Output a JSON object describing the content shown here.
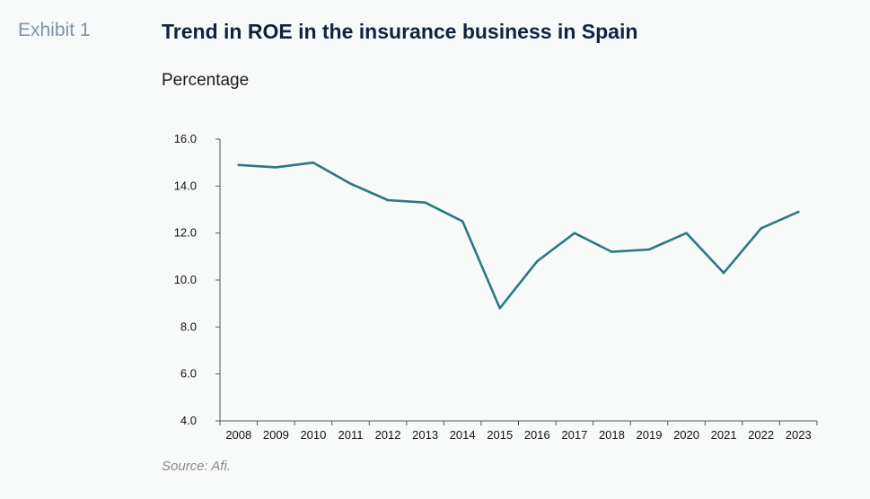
{
  "header": {
    "exhibit_label": "Exhibit 1",
    "title": "Trend in ROE in the insurance business in Spain",
    "subtitle": "Percentage"
  },
  "footer": {
    "source": "Source: Afi."
  },
  "chart_data": {
    "type": "line",
    "title": "Trend in ROE in the insurance business in Spain",
    "subtitle": "Percentage",
    "xlabel": "",
    "ylabel": "",
    "categories": [
      "2008",
      "2009",
      "2010",
      "2011",
      "2012",
      "2013",
      "2014",
      "2015",
      "2016",
      "2017",
      "2018",
      "2019",
      "2020",
      "2021",
      "2022",
      "2023"
    ],
    "series": [
      {
        "values": [
          14.9,
          14.8,
          15.0,
          14.1,
          13.4,
          13.3,
          12.5,
          8.8,
          10.8,
          12.0,
          11.2,
          11.3,
          12.0,
          10.3,
          12.2,
          12.9
        ]
      }
    ],
    "ylim": [
      4.0,
      16.0
    ],
    "yticks": [
      "4.0",
      "6.0",
      "8.0",
      "10.0",
      "12.0",
      "14.0",
      "16.0"
    ],
    "grid": false,
    "line_color": "#2a7a80",
    "axis_color": "#555555"
  }
}
